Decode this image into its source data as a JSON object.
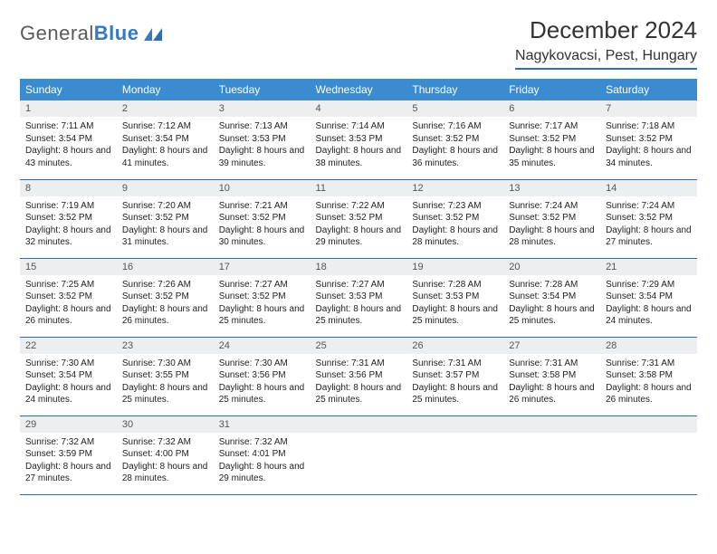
{
  "brand": {
    "part1": "General",
    "part2": "Blue"
  },
  "title": "December 2024",
  "subtitle": "Nagykovacsi, Pest, Hungary",
  "colors": {
    "header_bg": "#3b8bd1",
    "accent_border": "#2f6fb0",
    "daynum_bg": "#eceef0",
    "logo_grey": "#5b5b5b",
    "logo_blue": "#3578c6"
  },
  "day_headers": [
    "Sunday",
    "Monday",
    "Tuesday",
    "Wednesday",
    "Thursday",
    "Friday",
    "Saturday"
  ],
  "weeks": [
    [
      {
        "n": "1",
        "sr": "7:11 AM",
        "ss": "3:54 PM",
        "dl": "8 hours and 43 minutes."
      },
      {
        "n": "2",
        "sr": "7:12 AM",
        "ss": "3:54 PM",
        "dl": "8 hours and 41 minutes."
      },
      {
        "n": "3",
        "sr": "7:13 AM",
        "ss": "3:53 PM",
        "dl": "8 hours and 39 minutes."
      },
      {
        "n": "4",
        "sr": "7:14 AM",
        "ss": "3:53 PM",
        "dl": "8 hours and 38 minutes."
      },
      {
        "n": "5",
        "sr": "7:16 AM",
        "ss": "3:52 PM",
        "dl": "8 hours and 36 minutes."
      },
      {
        "n": "6",
        "sr": "7:17 AM",
        "ss": "3:52 PM",
        "dl": "8 hours and 35 minutes."
      },
      {
        "n": "7",
        "sr": "7:18 AM",
        "ss": "3:52 PM",
        "dl": "8 hours and 34 minutes."
      }
    ],
    [
      {
        "n": "8",
        "sr": "7:19 AM",
        "ss": "3:52 PM",
        "dl": "8 hours and 32 minutes."
      },
      {
        "n": "9",
        "sr": "7:20 AM",
        "ss": "3:52 PM",
        "dl": "8 hours and 31 minutes."
      },
      {
        "n": "10",
        "sr": "7:21 AM",
        "ss": "3:52 PM",
        "dl": "8 hours and 30 minutes."
      },
      {
        "n": "11",
        "sr": "7:22 AM",
        "ss": "3:52 PM",
        "dl": "8 hours and 29 minutes."
      },
      {
        "n": "12",
        "sr": "7:23 AM",
        "ss": "3:52 PM",
        "dl": "8 hours and 28 minutes."
      },
      {
        "n": "13",
        "sr": "7:24 AM",
        "ss": "3:52 PM",
        "dl": "8 hours and 28 minutes."
      },
      {
        "n": "14",
        "sr": "7:24 AM",
        "ss": "3:52 PM",
        "dl": "8 hours and 27 minutes."
      }
    ],
    [
      {
        "n": "15",
        "sr": "7:25 AM",
        "ss": "3:52 PM",
        "dl": "8 hours and 26 minutes."
      },
      {
        "n": "16",
        "sr": "7:26 AM",
        "ss": "3:52 PM",
        "dl": "8 hours and 26 minutes."
      },
      {
        "n": "17",
        "sr": "7:27 AM",
        "ss": "3:52 PM",
        "dl": "8 hours and 25 minutes."
      },
      {
        "n": "18",
        "sr": "7:27 AM",
        "ss": "3:53 PM",
        "dl": "8 hours and 25 minutes."
      },
      {
        "n": "19",
        "sr": "7:28 AM",
        "ss": "3:53 PM",
        "dl": "8 hours and 25 minutes."
      },
      {
        "n": "20",
        "sr": "7:28 AM",
        "ss": "3:54 PM",
        "dl": "8 hours and 25 minutes."
      },
      {
        "n": "21",
        "sr": "7:29 AM",
        "ss": "3:54 PM",
        "dl": "8 hours and 24 minutes."
      }
    ],
    [
      {
        "n": "22",
        "sr": "7:30 AM",
        "ss": "3:54 PM",
        "dl": "8 hours and 24 minutes."
      },
      {
        "n": "23",
        "sr": "7:30 AM",
        "ss": "3:55 PM",
        "dl": "8 hours and 25 minutes."
      },
      {
        "n": "24",
        "sr": "7:30 AM",
        "ss": "3:56 PM",
        "dl": "8 hours and 25 minutes."
      },
      {
        "n": "25",
        "sr": "7:31 AM",
        "ss": "3:56 PM",
        "dl": "8 hours and 25 minutes."
      },
      {
        "n": "26",
        "sr": "7:31 AM",
        "ss": "3:57 PM",
        "dl": "8 hours and 25 minutes."
      },
      {
        "n": "27",
        "sr": "7:31 AM",
        "ss": "3:58 PM",
        "dl": "8 hours and 26 minutes."
      },
      {
        "n": "28",
        "sr": "7:31 AM",
        "ss": "3:58 PM",
        "dl": "8 hours and 26 minutes."
      }
    ],
    [
      {
        "n": "29",
        "sr": "7:32 AM",
        "ss": "3:59 PM",
        "dl": "8 hours and 27 minutes."
      },
      {
        "n": "30",
        "sr": "7:32 AM",
        "ss": "4:00 PM",
        "dl": "8 hours and 28 minutes."
      },
      {
        "n": "31",
        "sr": "7:32 AM",
        "ss": "4:01 PM",
        "dl": "8 hours and 29 minutes."
      },
      {
        "empty": true
      },
      {
        "empty": true
      },
      {
        "empty": true
      },
      {
        "empty": true
      }
    ]
  ],
  "labels": {
    "sunrise": "Sunrise:",
    "sunset": "Sunset:",
    "daylight": "Daylight:"
  }
}
